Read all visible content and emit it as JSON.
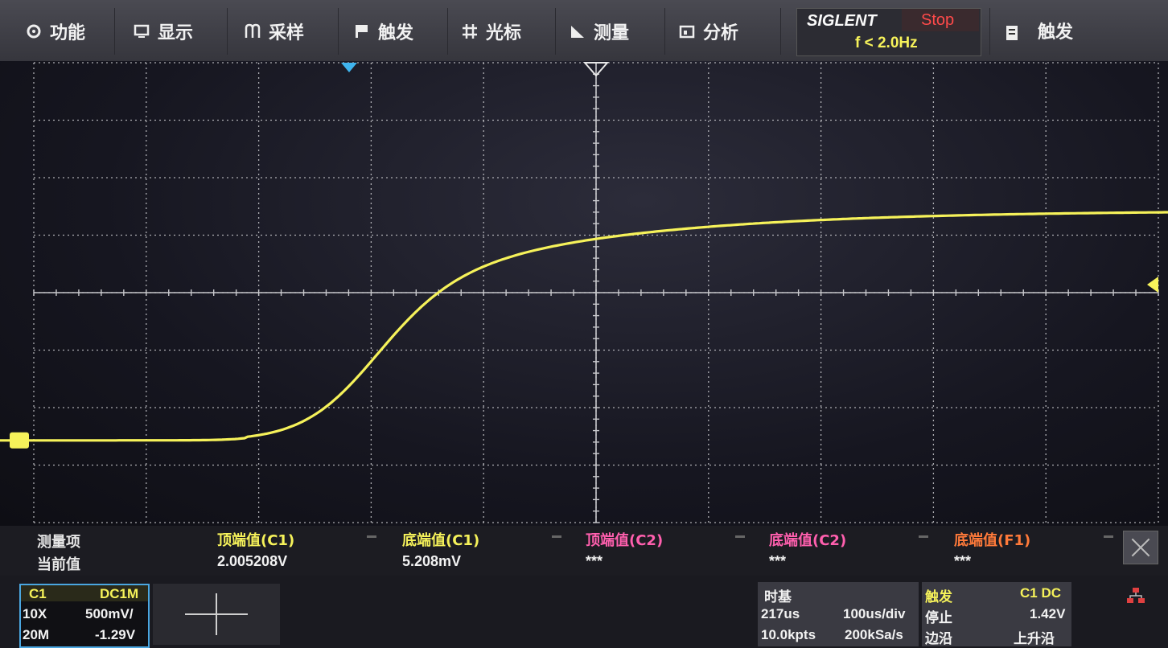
{
  "menu": {
    "function": "功能",
    "display": "显示",
    "acquire": "采样",
    "trigger": "触发",
    "cursor": "光标",
    "measure": "测量",
    "analysis": "分析",
    "right_trigger": "触发"
  },
  "brand": {
    "name": "SIGLENT",
    "status": "Stop",
    "freq": "f < 2.0Hz"
  },
  "measurement": {
    "row1_label": "测量项",
    "row2_label": "当前值",
    "columns": [
      {
        "name": "顶端值(C1)",
        "value": "2.005208V",
        "color": "#f6f25a"
      },
      {
        "name": "底端值(C1)",
        "value": "5.208mV",
        "color": "#f6f25a"
      },
      {
        "name": "顶端值(C2)",
        "value": "***",
        "color": "#ff5fae"
      },
      {
        "name": "底端值(C2)",
        "value": "***",
        "color": "#ff5fae"
      },
      {
        "name": "底端值(F1)",
        "value": "***",
        "color": "#ff7a3a"
      }
    ]
  },
  "channel": {
    "name": "C1",
    "coupling": "DC1M",
    "probe": "10X",
    "scale": "500mV/",
    "bw": "20M",
    "offset": "-1.29V"
  },
  "timebase": {
    "title": "时基",
    "delay": "217us",
    "div": "100us/div",
    "points": "10.0kpts",
    "rate": "200kSa/s"
  },
  "trigger": {
    "title": "触发",
    "source": "C1 DC",
    "state": "停止",
    "level": "1.42V",
    "mode": "边沿",
    "slope": "上升沿"
  },
  "colors": {
    "trace": "#f6f25a",
    "grid": "#c8c8cc",
    "trigger_marker": "#3fb4ee"
  },
  "waveform": {
    "units_per_div": "500mV",
    "baseline_level": 0.005,
    "top_level": 2.005
  }
}
